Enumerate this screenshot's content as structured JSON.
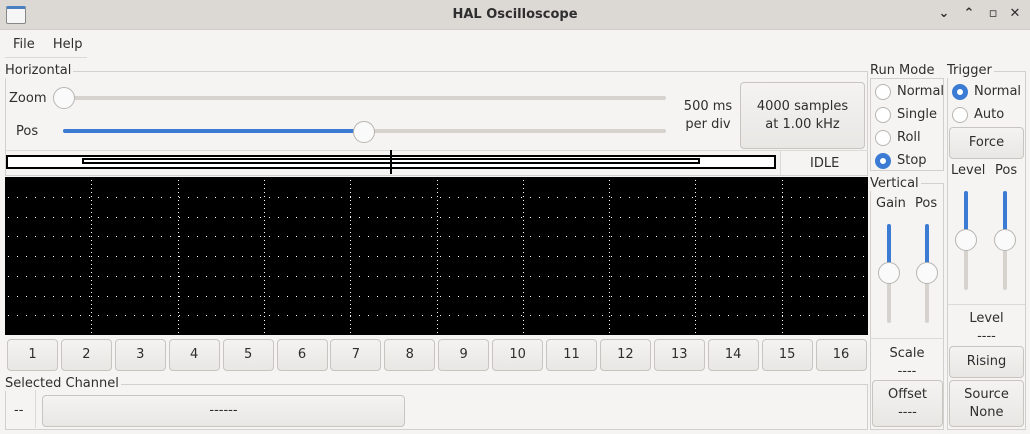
{
  "window": {
    "title": "HAL Oscilloscope",
    "controls": [
      "minimize",
      "maximize",
      "close"
    ]
  },
  "menu": [
    "File",
    "Help"
  ],
  "horizontal": {
    "label": "Horizontal",
    "zoom_label": "Zoom",
    "zoom_value": 0,
    "pos_label": "Pos",
    "pos_value": 0.5,
    "timebase_line1": "500 ms",
    "timebase_line2": "per div",
    "samples_line1": "4000 samples",
    "samples_line2": "at 1.00 kHz",
    "status": "IDLE"
  },
  "run_mode": {
    "label": "Run Mode",
    "options": [
      "Normal",
      "Single",
      "Roll",
      "Stop"
    ],
    "selected": "Stop"
  },
  "trigger": {
    "label": "Trigger",
    "options": [
      "Normal",
      "Auto"
    ],
    "selected": "Normal",
    "force": "Force",
    "level_label": "Level",
    "pos_label": "Pos",
    "level_value": 0.5,
    "pos_value": 0.5,
    "level_readout_label": "Level",
    "level_readout": "----",
    "edge": "Rising",
    "source_label": "Source",
    "source_value": "None"
  },
  "vertical": {
    "label": "Vertical",
    "gain_label": "Gain",
    "pos_label": "Pos",
    "gain_value": 0.5,
    "pos_value": 0.5,
    "scale_label": "Scale",
    "scale_value": "----",
    "offset_label": "Offset",
    "offset_value": "----"
  },
  "channels": [
    "1",
    "2",
    "3",
    "4",
    "5",
    "6",
    "7",
    "8",
    "9",
    "10",
    "11",
    "12",
    "13",
    "14",
    "15",
    "16"
  ],
  "selected_channel": {
    "label": "Selected Channel",
    "number": "--",
    "name": "------"
  }
}
